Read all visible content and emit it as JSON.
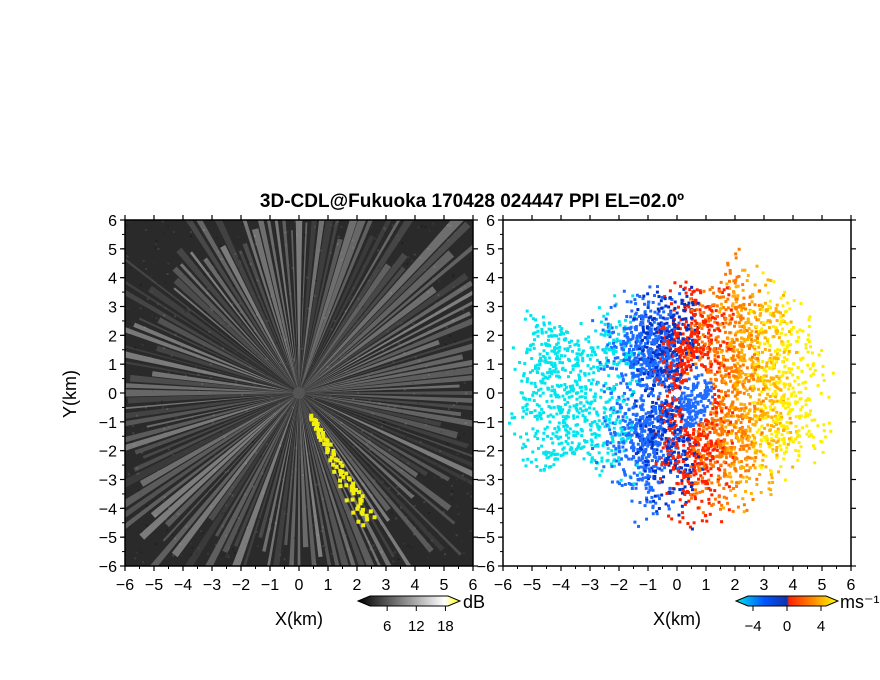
{
  "chart_data": {
    "type": "heatmap",
    "title": "3D-CDL@Fukuoka 170428 024447 PPI EL=02.0º",
    "panels": [
      {
        "name": "",
        "quantity": "backscatter intensity",
        "xlabel": "X(km)",
        "ylabel": "Y(km)",
        "xlim": [
          -6,
          6
        ],
        "ylim": [
          -6,
          6
        ],
        "xticks": [
          -6,
          -5,
          -4,
          -3,
          -2,
          -1,
          0,
          1,
          2,
          3,
          4,
          5,
          6
        ],
        "yticks": [
          -6,
          -5,
          -4,
          -3,
          -2,
          -1,
          0,
          1,
          2,
          3,
          4,
          5,
          6
        ],
        "background_color": "#2a2a2a",
        "highlight_color": "#f2ee10",
        "highlight_region": {
          "azimuth_deg": [
            146,
            160
          ],
          "range_km": [
            0.8,
            5.0
          ]
        },
        "colorbar": {
          "unit": "dB",
          "ticks": [
            6,
            12,
            18
          ],
          "range": [
            0,
            21
          ],
          "colors": [
            "#000000",
            "#ffffff",
            "#ffff00"
          ]
        }
      },
      {
        "name": "",
        "quantity": "radial velocity",
        "xlabel": "X(km)",
        "ylabel": "",
        "xlim": [
          -6,
          6
        ],
        "ylim": [
          -6,
          6
        ],
        "xticks": [
          -6,
          -5,
          -4,
          -3,
          -2,
          -1,
          0,
          1,
          2,
          3,
          4,
          5,
          6
        ],
        "yticks": [
          -6,
          -5,
          -4,
          -3,
          -2,
          -1,
          0,
          1,
          2,
          3,
          4,
          5,
          6
        ],
        "background_color": "#ffffff",
        "colorbar": {
          "unit": "ms⁻¹",
          "ticks": [
            -4,
            0,
            4
          ],
          "range": [
            -6,
            6
          ],
          "colors": [
            "#00e5ee",
            "#0055ff",
            "#ff2200",
            "#ff8800",
            "#ffff00"
          ]
        }
      }
    ]
  },
  "labels": {
    "title": "3D-CDL@Fukuoka 170428 024447 PPI EL=02.0º",
    "xlabel_left": "X(km)",
    "xlabel_right": "X(km)",
    "ylabel": "Y(km)",
    "cb1_unit": "dB",
    "cb2_unit": "ms⁻¹"
  }
}
